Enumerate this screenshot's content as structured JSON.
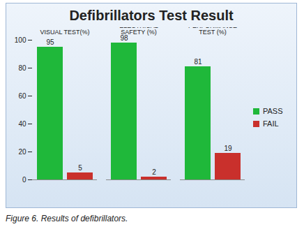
{
  "chart_data": {
    "type": "bar",
    "title": "Defibrillators Test Result",
    "caption": "Figure 6. Results of defibrillators.",
    "categories": [
      "VISUAL TEST(%)",
      "ELECTRICAL SAFETY (%)",
      "PERFORMANCE TEST (%)"
    ],
    "series": [
      {
        "name": "PASS",
        "color": "#1fb83a",
        "values": [
          95,
          98,
          81
        ]
      },
      {
        "name": "FAIL",
        "color": "#c9302c",
        "values": [
          5,
          2,
          19
        ]
      }
    ],
    "ylim": [
      0,
      100
    ],
    "yticks": [
      0,
      20,
      40,
      60,
      80,
      100
    ],
    "grid": false,
    "legend": "right",
    "data_labels": true
  }
}
